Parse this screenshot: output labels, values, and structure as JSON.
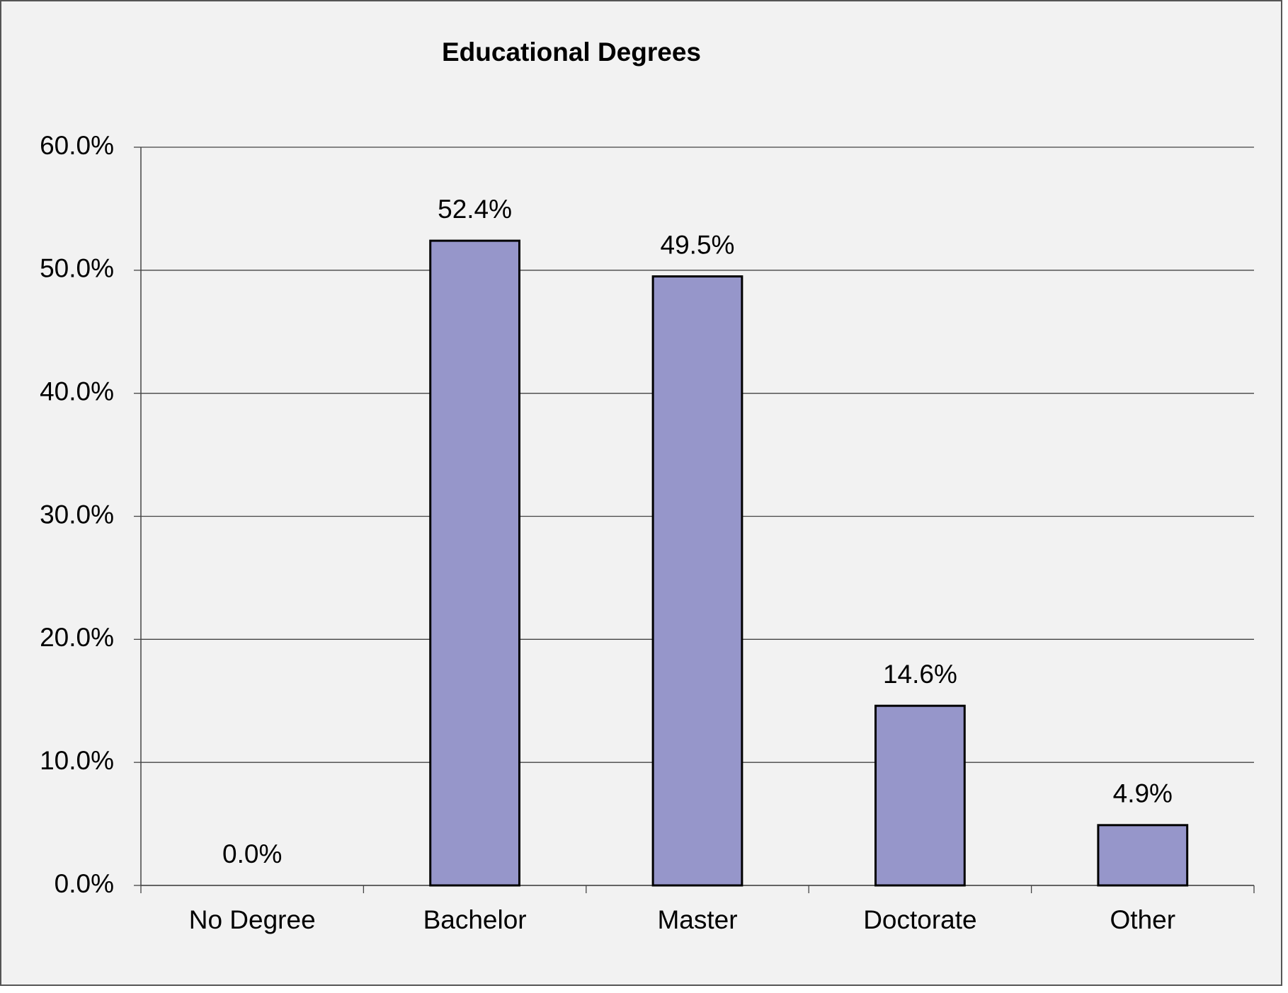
{
  "chart_data": {
    "type": "bar",
    "title": "Educational Degrees",
    "categories": [
      "No Degree",
      "Bachelor",
      "Master",
      "Doctorate",
      "Other"
    ],
    "values": [
      0.0,
      52.4,
      49.5,
      14.6,
      4.9
    ],
    "value_labels": [
      "0.0%",
      "52.4%",
      "49.5%",
      "14.6%",
      "4.9%"
    ],
    "color": "#9696ca",
    "ylim": [
      0,
      60
    ],
    "yticks": [
      {
        "value": 0,
        "label": "0.0%"
      },
      {
        "value": 10,
        "label": "10.0%"
      },
      {
        "value": 20,
        "label": "20.0%"
      },
      {
        "value": 30,
        "label": "30.0%"
      },
      {
        "value": 40,
        "label": "40.0%"
      },
      {
        "value": 50,
        "label": "50.0%"
      },
      {
        "value": 60,
        "label": "60.0%"
      }
    ],
    "grid": true
  }
}
